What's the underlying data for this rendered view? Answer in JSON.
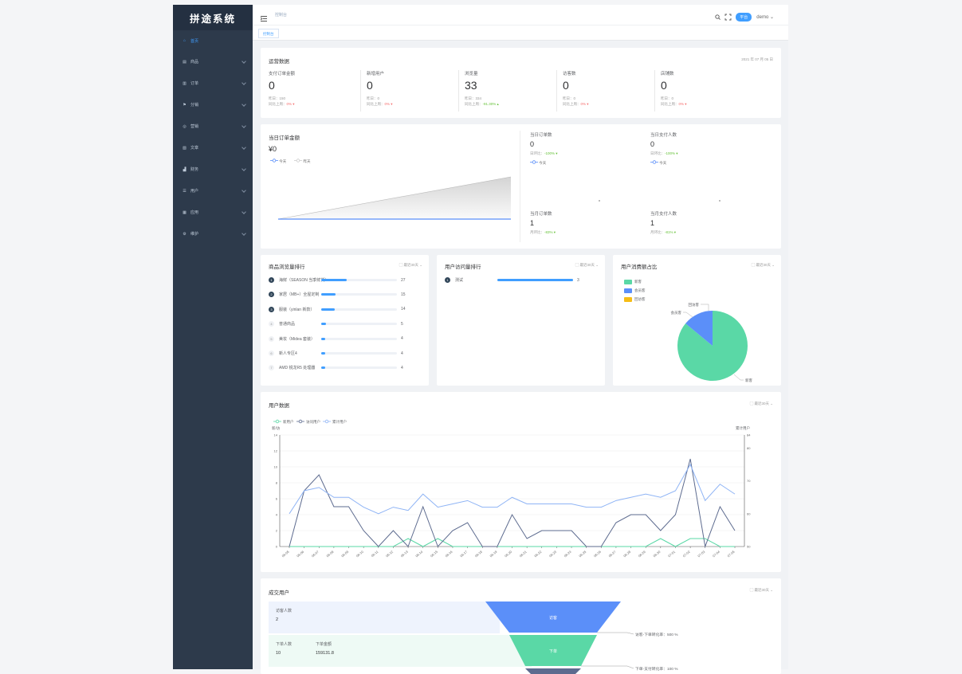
{
  "app": {
    "logo": "拼途系统"
  },
  "sidebar": {
    "items": [
      {
        "label": "首页",
        "icon": "home-icon",
        "active": true
      },
      {
        "label": "商品",
        "icon": "goods-icon"
      },
      {
        "label": "订单",
        "icon": "order-icon"
      },
      {
        "label": "分销",
        "icon": "share-icon"
      },
      {
        "label": "营销",
        "icon": "marketing-icon"
      },
      {
        "label": "文章",
        "icon": "article-icon"
      },
      {
        "label": "财务",
        "icon": "finance-icon"
      },
      {
        "label": "用户",
        "icon": "user-icon"
      },
      {
        "label": "应用",
        "icon": "app-icon"
      },
      {
        "label": "维护",
        "icon": "settings-icon"
      }
    ]
  },
  "header": {
    "breadcrumb": "控制台",
    "badge": "平台",
    "user": "demo"
  },
  "tabs": [
    {
      "label": "控制台"
    }
  ],
  "ops": {
    "title": "运营数据",
    "date": "2021 年 07 月 05 日",
    "kpis": [
      {
        "label": "支付订单金额",
        "value": "0",
        "prev": "昨日：150",
        "cmp": "同比上周：",
        "pct": "0%",
        "trend": "down"
      },
      {
        "label": "新增用户",
        "value": "0",
        "prev": "昨日：0",
        "cmp": "同比上周：",
        "pct": "0%",
        "trend": "down"
      },
      {
        "label": "浏览量",
        "value": "33",
        "prev": "昨日：334",
        "cmp": "同比上周：",
        "pct": "-91.30%",
        "trend": "up"
      },
      {
        "label": "访客数",
        "value": "0",
        "prev": "昨日：0",
        "cmp": "同比上周：",
        "pct": "0%",
        "trend": "down"
      },
      {
        "label": "店铺数",
        "value": "0",
        "prev": "昨日：0",
        "cmp": "同比上周：",
        "pct": "0%",
        "trend": "down"
      }
    ]
  },
  "today": {
    "title": "当日订单金额",
    "amount": "¥0",
    "legend_today": "今天",
    "legend_yesterday": "昨天",
    "metrics": [
      {
        "label": "当日订单数",
        "value": "0",
        "sub": "日环比：",
        "pct": "-100% ▾",
        "legend": "今天"
      },
      {
        "label": "当日支付人数",
        "value": "0",
        "sub": "日环比：",
        "pct": "-100% ▾",
        "legend": "今天"
      },
      {
        "label": "当月订单数",
        "value": "1",
        "sub": "月环比：",
        "pct": "-83% ▾"
      },
      {
        "label": "当月支付人数",
        "value": "1",
        "sub": "月环比：",
        "pct": "-81% ▾"
      }
    ]
  },
  "goods_rank": {
    "title": "商品浏览量排行",
    "range": "最近30天",
    "items": [
      {
        "name": "海鲜（SEASON 当季鲜货）",
        "value": 27
      },
      {
        "name": "家居（MB+）全屋定制",
        "value": 15
      },
      {
        "name": "服装（yinlan 新款）",
        "value": 14
      },
      {
        "name": "普通商品",
        "value": 5
      },
      {
        "name": "美妆（Midea 套装）",
        "value": 4
      },
      {
        "name": "新人专区4",
        "value": 4
      },
      {
        "name": "AMD 锐龙R5 处理器",
        "value": 4
      }
    ]
  },
  "user_rank": {
    "title": "用户访问量排行",
    "range": "最近30天",
    "items": [
      {
        "name": "测试",
        "value": 3
      }
    ]
  },
  "consume_ratio": {
    "title": "用户消费额占比",
    "range": "最近30天",
    "legend": [
      "新客",
      "会员客",
      "回访客"
    ],
    "colors": [
      "#5ad8a6",
      "#5b8ff9",
      "#f6bd16"
    ],
    "labels": {
      "new": "新客",
      "member": "会员客",
      "back": "回访客"
    }
  },
  "user_data": {
    "title": "用户数据",
    "range": "最近30天",
    "legend": [
      "新用户",
      "访问用户",
      "累计用户"
    ],
    "left_axis_label": "新/访",
    "right_axis_label": "累计用户"
  },
  "funnel": {
    "title": "成交用户",
    "range": "最近30天",
    "rows": [
      {
        "label": "访客人数",
        "value": "2",
        "stage": "访客"
      },
      {
        "label": "下单人数",
        "value": "10",
        "label2": "下单金额",
        "value2": "159131.8",
        "stage": "下单"
      }
    ],
    "rates": [
      "访客-下单转化率：500 %",
      "下单-支付转化率：100 %"
    ]
  },
  "chart_data": [
    {
      "type": "line",
      "title": "用户数据",
      "x": [
        "06-05",
        "06-06",
        "06-07",
        "06-08",
        "06-09",
        "06-10",
        "06-11",
        "06-12",
        "06-13",
        "06-14",
        "06-15",
        "06-16",
        "06-17",
        "06-18",
        "06-19",
        "06-20",
        "06-21",
        "06-22",
        "06-23",
        "06-24",
        "06-25",
        "06-26",
        "06-27",
        "06-28",
        "06-29",
        "06-30",
        "07-01",
        "07-02",
        "07-03",
        "07-04",
        "07-05"
      ],
      "ylim_left": [
        0,
        14
      ],
      "ylim_right": [
        50,
        84
      ],
      "series": [
        {
          "name": "新用户",
          "axis": "left",
          "color": "#5ad8a6",
          "values": [
            0,
            0,
            0,
            0,
            0,
            0,
            0,
            0,
            1,
            0,
            1,
            0,
            0,
            0,
            0,
            0,
            0,
            0,
            0,
            0,
            0,
            0,
            0,
            0,
            0,
            1,
            0,
            1,
            1,
            0,
            0
          ]
        },
        {
          "name": "访问用户",
          "axis": "left",
          "color": "#5d6b8f",
          "values": [
            0,
            7,
            9,
            5,
            5,
            2,
            0,
            2,
            0,
            5,
            0,
            2,
            3,
            0,
            0,
            4,
            1,
            2,
            2,
            2,
            0,
            0,
            3,
            4,
            4,
            2,
            4,
            11,
            0,
            5,
            2
          ]
        },
        {
          "name": "累计用户",
          "axis": "right",
          "color": "#8fb4f5",
          "values": [
            60,
            67,
            68,
            65,
            65,
            62,
            60,
            62,
            61,
            66,
            62,
            63,
            64,
            62,
            62,
            65,
            63,
            63,
            63,
            63,
            62,
            62,
            64,
            65,
            66,
            65,
            67,
            75,
            64,
            69,
            66
          ]
        }
      ]
    },
    {
      "type": "pie",
      "title": "用户消费额占比",
      "labels": [
        "新客",
        "会员客",
        "回访客"
      ],
      "values": [
        86,
        14,
        0
      ]
    },
    {
      "type": "area",
      "title": "当日订单金额",
      "series": [
        {
          "name": "今天",
          "values": [
            0,
            0
          ]
        },
        {
          "name": "昨天",
          "values": [
            0,
            150
          ]
        }
      ]
    }
  ]
}
